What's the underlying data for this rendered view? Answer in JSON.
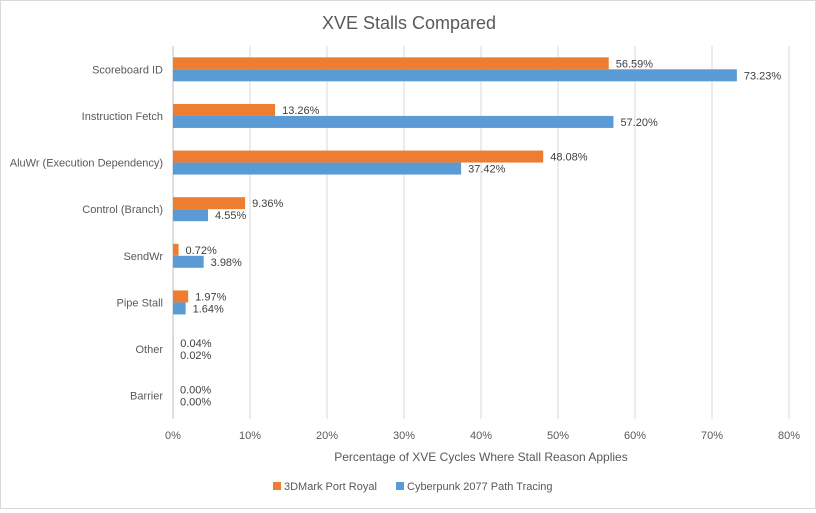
{
  "chart_data": {
    "type": "bar",
    "orientation": "horizontal",
    "title": "XVE Stalls Compared",
    "xlabel": "Percentage of XVE Cycles Where Stall Reason Applies",
    "ylabel": "",
    "xlim": [
      0,
      80
    ],
    "x_ticks": [
      "0%",
      "10%",
      "20%",
      "30%",
      "40%",
      "50%",
      "60%",
      "70%",
      "80%"
    ],
    "grid": "vertical",
    "legend_position": "bottom",
    "categories": [
      "Scoreboard ID",
      "Instruction Fetch",
      "AluWr (Execution Dependency)",
      "Control (Branch)",
      "SendWr",
      "Pipe Stall",
      "Other",
      "Barrier"
    ],
    "series": [
      {
        "name": "3DMark Port Royal",
        "color": "#ed7d31",
        "values": [
          56.59,
          13.26,
          48.08,
          9.36,
          0.72,
          1.97,
          0.04,
          0.0
        ],
        "labels": [
          "56.59%",
          "13.26%",
          "48.08%",
          "9.36%",
          "0.72%",
          "1.97%",
          "0.04%",
          "0.00%"
        ]
      },
      {
        "name": "Cyberpunk 2077 Path Tracing",
        "color": "#5b9bd5",
        "values": [
          73.23,
          57.2,
          37.42,
          4.55,
          3.98,
          1.64,
          0.02,
          0.0
        ],
        "labels": [
          "73.23%",
          "57.20%",
          "37.42%",
          "4.55%",
          "3.98%",
          "1.64%",
          "0.02%",
          "0.00%"
        ]
      }
    ]
  }
}
